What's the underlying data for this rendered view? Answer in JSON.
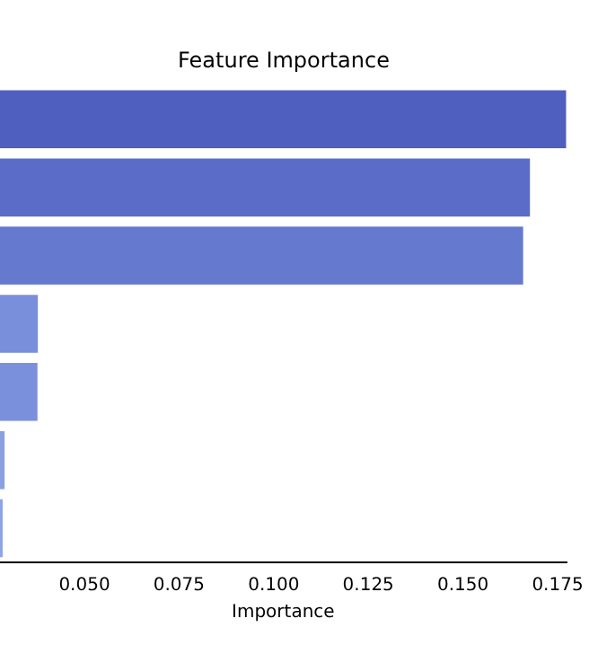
{
  "chart_data": {
    "type": "bar",
    "orientation": "horizontal",
    "title": "Feature Importance",
    "xlabel": "Importance",
    "categories": [
      null,
      null,
      null,
      null,
      null,
      null,
      null
    ],
    "values": [
      0.1773,
      0.1677,
      0.1659,
      0.0377,
      0.0376,
      0.0289,
      0.0284
    ],
    "colors": [
      "#4f5fbf",
      "#5a6cc8",
      "#6579cf",
      "#7a8fdb",
      "#7b90dc",
      "#8aa0e3",
      "#8ea4e6"
    ],
    "xlim": [
      0.0277,
      0.1773
    ],
    "xticks": [
      {
        "value": 0.05,
        "label": "0.050"
      },
      {
        "value": 0.075,
        "label": "0.075"
      },
      {
        "value": 0.1,
        "label": "0.100"
      },
      {
        "value": 0.125,
        "label": "0.125"
      },
      {
        "value": 0.15,
        "label": "0.150"
      },
      {
        "value": 0.175,
        "label": "0.175"
      }
    ],
    "grid": false,
    "legend": false,
    "tick_labels": "x"
  }
}
